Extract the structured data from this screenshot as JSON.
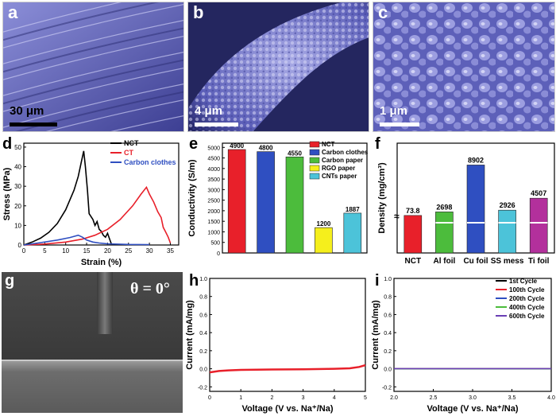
{
  "figure": {
    "panel_letters": {
      "a": "a",
      "b": "b",
      "c": "c",
      "d": "d",
      "e": "e",
      "f": "f",
      "g": "g",
      "h": "h",
      "i": "i"
    },
    "scale_bars": {
      "a": "30 μm",
      "b": "4 μm",
      "c": "1 μm"
    },
    "contact_angle": "θ = 0°",
    "sem_color": "#6c6fc4"
  },
  "chart_data": [
    {
      "panel": "d",
      "type": "line",
      "xlabel": "Strain (%)",
      "ylabel": "Stress (MPa)",
      "xlim": [
        0,
        37
      ],
      "ylim": [
        0,
        52
      ],
      "xticks": [
        "0",
        "5",
        "10",
        "15",
        "20",
        "25",
        "30",
        "35"
      ],
      "yticks": [
        "0",
        "10",
        "20",
        "30",
        "40",
        "50"
      ],
      "legend_position": "top-right",
      "series": [
        {
          "name": "NCT",
          "color": "#000000",
          "points": [
            [
              0,
              0
            ],
            [
              2,
              1.5
            ],
            [
              4,
              3.5
            ],
            [
              6,
              6.5
            ],
            [
              8,
              11
            ],
            [
              10,
              18
            ],
            [
              12,
              28
            ],
            [
              13,
              35
            ],
            [
              13.8,
              43
            ],
            [
              14.3,
              48
            ],
            [
              14.7,
              40
            ],
            [
              15.2,
              28
            ],
            [
              15.6,
              16
            ],
            [
              16.5,
              13
            ],
            [
              17,
              10
            ],
            [
              17.5,
              12
            ],
            [
              18,
              8
            ],
            [
              18.5,
              7
            ],
            [
              19,
              5
            ],
            [
              19.5,
              4
            ],
            [
              20,
              6
            ],
            [
              20.5,
              3
            ],
            [
              21,
              0
            ]
          ]
        },
        {
          "name": "CT",
          "color": "#e8202a",
          "points": [
            [
              0,
              0
            ],
            [
              5,
              0.5
            ],
            [
              10,
              1.5
            ],
            [
              14,
              3
            ],
            [
              17,
              5
            ],
            [
              20,
              8
            ],
            [
              23,
              13
            ],
            [
              26,
              20
            ],
            [
              28,
              26
            ],
            [
              29.3,
              29.5
            ],
            [
              30,
              26
            ],
            [
              31,
              22
            ],
            [
              32,
              17
            ],
            [
              32.8,
              14
            ],
            [
              33.3,
              9
            ],
            [
              33.8,
              7
            ],
            [
              34.5,
              4
            ],
            [
              35,
              1
            ]
          ]
        },
        {
          "name": "Carbon clothes",
          "color": "#2f4fc1",
          "points": [
            [
              0,
              0
            ],
            [
              4,
              1.2
            ],
            [
              8,
              2.5
            ],
            [
              11,
              3.8
            ],
            [
              13,
              5
            ],
            [
              14,
              4
            ],
            [
              15,
              2.5
            ],
            [
              16.5,
              1.5
            ],
            [
              18,
              1
            ],
            [
              20,
              0.6
            ],
            [
              25,
              0.3
            ],
            [
              30,
              0.2
            ]
          ]
        }
      ]
    },
    {
      "panel": "e",
      "type": "bar",
      "ylabel": "Conductivity (S/m)",
      "ylim": [
        0,
        5200
      ],
      "yticks": [
        "0",
        "500",
        "1000",
        "1500",
        "2000",
        "2500",
        "3000",
        "3500",
        "4000",
        "4500",
        "5000"
      ],
      "categories": [
        "NCT",
        "Carbon clothes",
        "Carbon paper",
        "RGO paper",
        "CNTs paper"
      ],
      "values": [
        4900,
        4800,
        4550,
        1200,
        1887
      ],
      "value_labels": [
        "4900",
        "4800",
        "4550",
        "1200",
        "1887"
      ],
      "colors": [
        "#e8202a",
        "#2f4fc1",
        "#4cbc3c",
        "#f5ef1c",
        "#4cc3d9"
      ],
      "legend_position": "top-right"
    },
    {
      "panel": "f",
      "type": "bar",
      "ylabel": "Density (mg/cm³)",
      "broken_axis": true,
      "categories": [
        "NCT",
        "Al foil",
        "Cu foil",
        "SS mess",
        "Ti foil"
      ],
      "values": [
        73.8,
        2698,
        8902,
        2926,
        4507
      ],
      "value_labels": [
        "73.8",
        "2698",
        "8902",
        "2926",
        "4507"
      ],
      "colors": [
        "#e8202a",
        "#4cbc3c",
        "#2f4fc1",
        "#4cc3d9",
        "#b3309c"
      ]
    },
    {
      "panel": "h",
      "type": "line",
      "xlabel": "Voltage (V vs. Na⁺/Na)",
      "ylabel": "Current (mA/mg)",
      "xlim": [
        0,
        5
      ],
      "ylim": [
        -0.25,
        1.0
      ],
      "xticks": [
        "0",
        "1",
        "2",
        "3",
        "4",
        "5"
      ],
      "yticks": [
        "-0.2",
        "0.0",
        "0.2",
        "0.4",
        "0.6",
        "0.8",
        "1.0"
      ],
      "series": [
        {
          "color": "#e8202a",
          "points": [
            [
              0,
              -0.04
            ],
            [
              0.3,
              -0.025
            ],
            [
              0.6,
              -0.018
            ],
            [
              1,
              -0.012
            ],
            [
              2,
              -0.008
            ],
            [
              3,
              -0.005
            ],
            [
              4,
              0.0
            ],
            [
              4.5,
              0.005
            ],
            [
              4.8,
              0.02
            ],
            [
              5,
              0.04
            ]
          ]
        }
      ]
    },
    {
      "panel": "i",
      "type": "line",
      "xlabel": "Voltage (V vs. Na⁺/Na)",
      "ylabel": "Current (mA/mg)",
      "xlim": [
        2.0,
        4.0
      ],
      "ylim": [
        -0.25,
        1.0
      ],
      "xticks": [
        "2.0",
        "2.5",
        "3.0",
        "3.5",
        "4.0"
      ],
      "yticks": [
        "-0.2",
        "0.0",
        "0.2",
        "0.4",
        "0.6",
        "0.8",
        "1.0"
      ],
      "legend_position": "top-right",
      "series": [
        {
          "name": "1st Cycle",
          "color": "#000000",
          "points": [
            [
              2,
              0.0
            ],
            [
              4,
              0.0
            ]
          ]
        },
        {
          "name": "100th Cycle",
          "color": "#e8202a",
          "points": [
            [
              2,
              0.002
            ],
            [
              4,
              0.002
            ]
          ]
        },
        {
          "name": "200th Cycle",
          "color": "#2f4fc1",
          "points": [
            [
              2,
              0.001
            ],
            [
              4,
              0.001
            ]
          ]
        },
        {
          "name": "400th Cycle",
          "color": "#4cbc3c",
          "points": [
            [
              2,
              -0.001
            ],
            [
              4,
              -0.001
            ]
          ]
        },
        {
          "name": "600th Cycle",
          "color": "#6a3fb5",
          "points": [
            [
              2,
              0.0
            ],
            [
              4,
              0.0
            ]
          ]
        }
      ]
    }
  ]
}
